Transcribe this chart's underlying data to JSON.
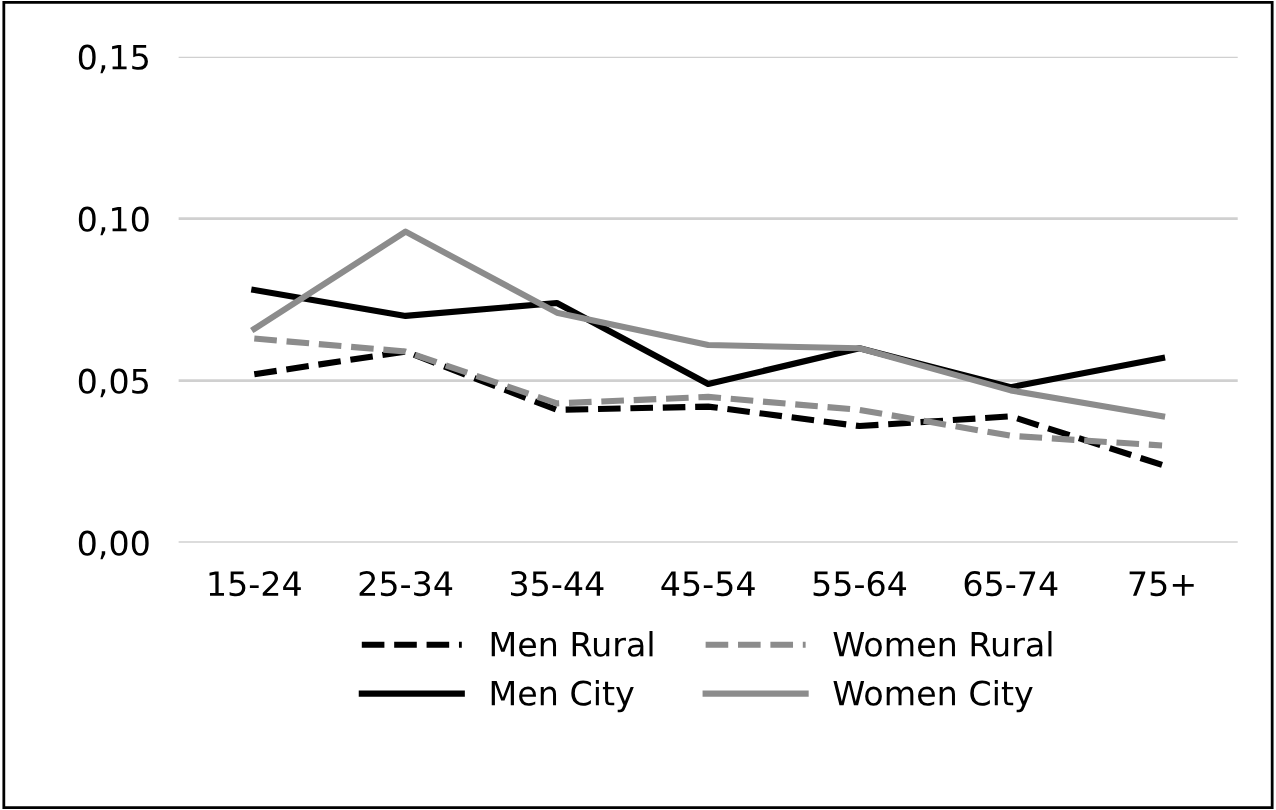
{
  "chart_data": {
    "type": "line",
    "categories": [
      "15-24",
      "25-34",
      "35-44",
      "45-54",
      "55-64",
      "65-74",
      "75+"
    ],
    "ylim": [
      0,
      0.15
    ],
    "yticks": [
      {
        "value": 0,
        "label": "0,00"
      },
      {
        "value": 0.05,
        "label": "0,05"
      },
      {
        "value": 0.1,
        "label": "0,10"
      },
      {
        "value": 0.15,
        "label": "0,15"
      }
    ],
    "grid": "y",
    "legend": "bottom",
    "marker": "none",
    "series": [
      {
        "name": "Men Rural",
        "color": "#000000",
        "line_style": "dashed",
        "values": [
          0.052,
          0.059,
          0.041,
          0.042,
          0.036,
          0.039,
          0.024
        ]
      },
      {
        "name": "Men City",
        "color": "#000000",
        "line_style": "solid",
        "values": [
          0.078,
          0.07,
          0.074,
          0.049,
          0.06,
          0.048,
          0.057
        ]
      },
      {
        "name": "Women Rural",
        "color": "#8c8c8c",
        "line_style": "dashed",
        "values": [
          0.063,
          0.059,
          0.043,
          0.045,
          0.041,
          0.033,
          0.03
        ]
      },
      {
        "name": "Women City",
        "color": "#8c8c8c",
        "line_style": "solid",
        "values": [
          0.066,
          0.096,
          0.071,
          0.061,
          0.06,
          0.047,
          0.039
        ]
      }
    ]
  }
}
